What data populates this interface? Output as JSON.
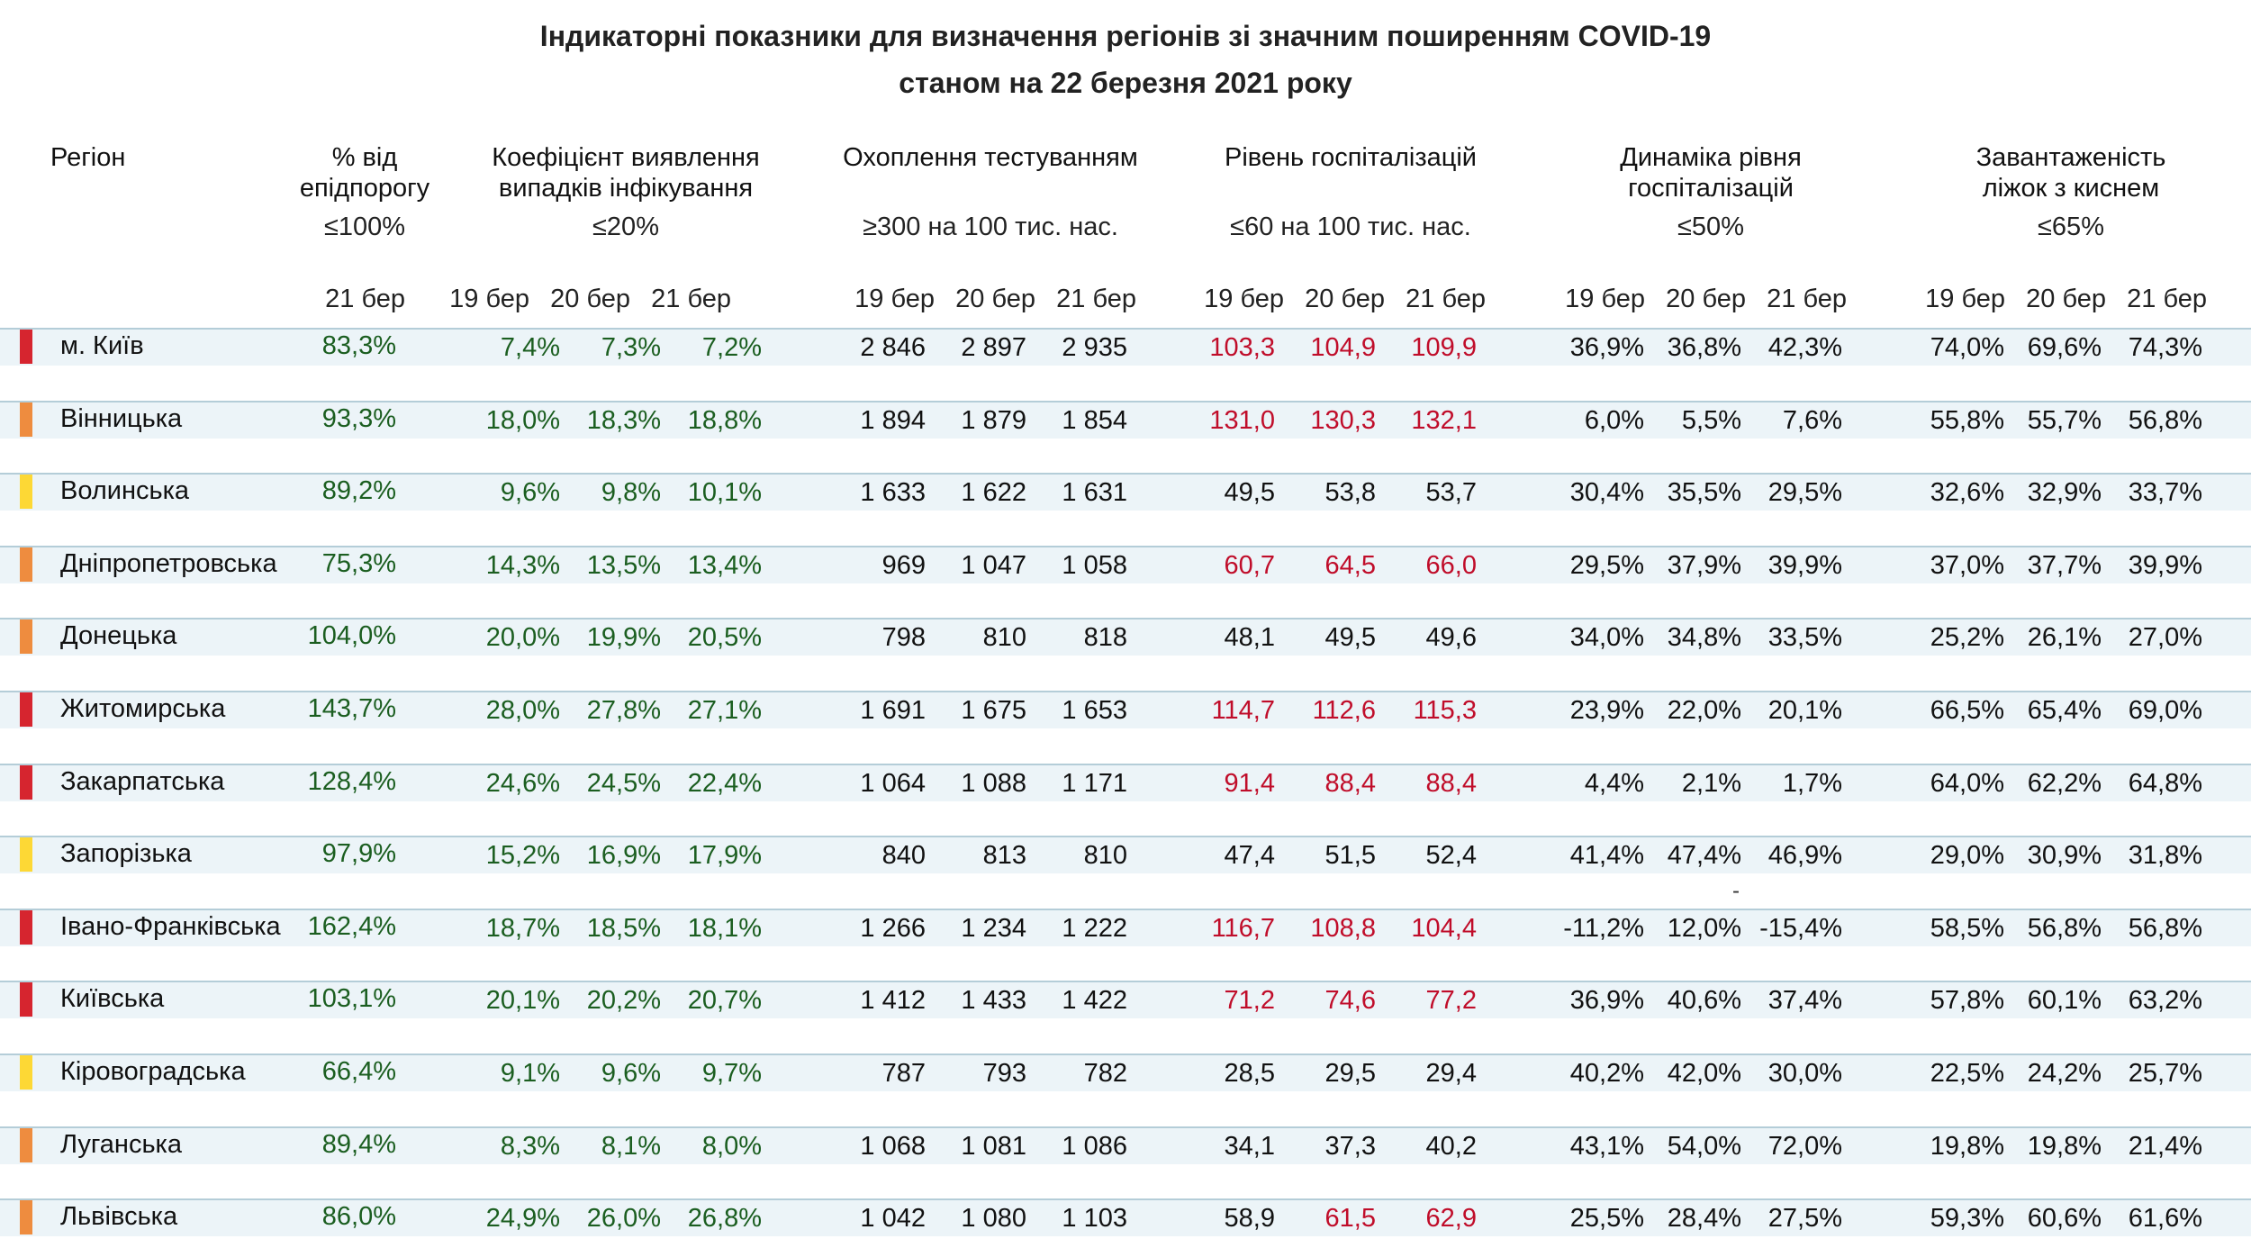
{
  "title": {
    "line1": "Індикаторні показники для визначення регіонів зі значним поширенням COVID-19",
    "line2": "станом на 22 березня 2021 року"
  },
  "columns": {
    "region": "Регіон",
    "epi_line1": "% від",
    "epi_line2": "епідпорогу",
    "epi_threshold": "≤100%",
    "coef_line1": "Коефіцієнт виявлення",
    "coef_line2": "випадків інфікування",
    "coef_threshold": "≤20%",
    "test_line1": "Охоплення тестуванням",
    "test_threshold": "≥300 на 100 тис. нас.",
    "hosp_line1": "Рівень госпіталізацій",
    "hosp_threshold": "≤60 на 100 тис. нас.",
    "dyn_line1": "Динаміка рівня",
    "dyn_line2": "госпіталізацій",
    "dyn_threshold": "≤50%",
    "oxy_line1": "Завантаженість",
    "oxy_line2": "ліжок з киснем",
    "oxy_threshold": "≤65%"
  },
  "days": {
    "d19": "19 бер",
    "d20": "20 бер",
    "d21": "21 бер"
  },
  "colors": {
    "red_level": "#d6252f",
    "orange_level": "#ee8c3f",
    "yellow_level": "#fdd835",
    "ok_value": "#1b5e20",
    "bad_value": "#c00d2a",
    "band": "#ecf4f8"
  },
  "rows": [
    {
      "region": "м. Київ",
      "level": "red",
      "epi": "83,3%",
      "coef": [
        "7,4%",
        "7,3%",
        "7,2%"
      ],
      "test": [
        "2 846",
        "2 897",
        "2 935"
      ],
      "hosp": [
        "103,3",
        "104,9",
        "109,9"
      ],
      "hosp_flag": [
        "red",
        "red",
        "red"
      ],
      "dyn": [
        "36,9%",
        "36,8%",
        "42,3%"
      ],
      "oxy": [
        "74,0%",
        "69,6%",
        "74,3%"
      ]
    },
    {
      "region": "Вінницька",
      "level": "orange",
      "epi": "93,3%",
      "coef": [
        "18,0%",
        "18,3%",
        "18,8%"
      ],
      "test": [
        "1 894",
        "1 879",
        "1 854"
      ],
      "hosp": [
        "131,0",
        "130,3",
        "132,1"
      ],
      "hosp_flag": [
        "red",
        "red",
        "red"
      ],
      "dyn": [
        "6,0%",
        "5,5%",
        "7,6%"
      ],
      "oxy": [
        "55,8%",
        "55,7%",
        "56,8%"
      ]
    },
    {
      "region": "Волинська",
      "level": "yellow",
      "epi": "89,2%",
      "coef": [
        "9,6%",
        "9,8%",
        "10,1%"
      ],
      "test": [
        "1 633",
        "1 622",
        "1 631"
      ],
      "hosp": [
        "49,5",
        "53,8",
        "53,7"
      ],
      "hosp_flag": [
        "black",
        "black",
        "black"
      ],
      "dyn": [
        "30,4%",
        "35,5%",
        "29,5%"
      ],
      "oxy": [
        "32,6%",
        "32,9%",
        "33,7%"
      ]
    },
    {
      "region": "Дніпропетровська",
      "level": "orange",
      "epi": "75,3%",
      "coef": [
        "14,3%",
        "13,5%",
        "13,4%"
      ],
      "test": [
        "969",
        "1 047",
        "1 058"
      ],
      "hosp": [
        "60,7",
        "64,5",
        "66,0"
      ],
      "hosp_flag": [
        "red",
        "red",
        "red"
      ],
      "dyn": [
        "29,5%",
        "37,9%",
        "39,9%"
      ],
      "oxy": [
        "37,0%",
        "37,7%",
        "39,9%"
      ]
    },
    {
      "region": "Донецька",
      "level": "orange",
      "epi": "104,0%",
      "coef": [
        "20,0%",
        "19,9%",
        "20,5%"
      ],
      "test": [
        "798",
        "810",
        "818"
      ],
      "hosp": [
        "48,1",
        "49,5",
        "49,6"
      ],
      "hosp_flag": [
        "black",
        "black",
        "black"
      ],
      "dyn": [
        "34,0%",
        "34,8%",
        "33,5%"
      ],
      "oxy": [
        "25,2%",
        "26,1%",
        "27,0%"
      ]
    },
    {
      "region": "Житомирська",
      "level": "red",
      "epi": "143,7%",
      "coef": [
        "28,0%",
        "27,8%",
        "27,1%"
      ],
      "test": [
        "1 691",
        "1 675",
        "1 653"
      ],
      "hosp": [
        "114,7",
        "112,6",
        "115,3"
      ],
      "hosp_flag": [
        "red",
        "red",
        "red"
      ],
      "dyn": [
        "23,9%",
        "22,0%",
        "20,1%"
      ],
      "oxy": [
        "66,5%",
        "65,4%",
        "69,0%"
      ]
    },
    {
      "region": "Закарпатська",
      "level": "red",
      "epi": "128,4%",
      "coef": [
        "24,6%",
        "24,5%",
        "22,4%"
      ],
      "test": [
        "1 064",
        "1 088",
        "1 171"
      ],
      "hosp": [
        "91,4",
        "88,4",
        "88,4"
      ],
      "hosp_flag": [
        "red",
        "red",
        "red"
      ],
      "dyn": [
        "4,4%",
        "2,1%",
        "1,7%"
      ],
      "oxy": [
        "64,0%",
        "62,2%",
        "64,8%"
      ]
    },
    {
      "region": "Запорізька",
      "level": "yellow",
      "epi": "97,9%",
      "coef": [
        "15,2%",
        "16,9%",
        "17,9%"
      ],
      "test": [
        "840",
        "813",
        "810"
      ],
      "hosp": [
        "47,4",
        "51,5",
        "52,4"
      ],
      "hosp_flag": [
        "black",
        "black",
        "black"
      ],
      "dyn": [
        "41,4%",
        "47,4%",
        "46,9%"
      ],
      "oxy": [
        "29,0%",
        "30,9%",
        "31,8%"
      ]
    },
    {
      "region": "Івано-Франківська",
      "level": "red",
      "epi": "162,4%",
      "coef": [
        "18,7%",
        "18,5%",
        "18,1%"
      ],
      "test": [
        "1 266",
        "1 234",
        "1 222"
      ],
      "hosp": [
        "116,7",
        "108,8",
        "104,4"
      ],
      "hosp_flag": [
        "red",
        "red",
        "red"
      ],
      "dyn": [
        "-11,2%",
        "12,0%",
        "-15,4%"
      ],
      "oxy": [
        "58,5%",
        "56,8%",
        "56,8%"
      ]
    },
    {
      "region": "Київська",
      "level": "red",
      "epi": "103,1%",
      "coef": [
        "20,1%",
        "20,2%",
        "20,7%"
      ],
      "test": [
        "1 412",
        "1 433",
        "1 422"
      ],
      "hosp": [
        "71,2",
        "74,6",
        "77,2"
      ],
      "hosp_flag": [
        "red",
        "red",
        "red"
      ],
      "dyn": [
        "36,9%",
        "40,6%",
        "37,4%"
      ],
      "oxy": [
        "57,8%",
        "60,1%",
        "63,2%"
      ]
    },
    {
      "region": "Кіровоградська",
      "level": "yellow",
      "epi": "66,4%",
      "coef": [
        "9,1%",
        "9,6%",
        "9,7%"
      ],
      "test": [
        "787",
        "793",
        "782"
      ],
      "hosp": [
        "28,5",
        "29,5",
        "29,4"
      ],
      "hosp_flag": [
        "black",
        "black",
        "black"
      ],
      "dyn": [
        "40,2%",
        "42,0%",
        "30,0%"
      ],
      "oxy": [
        "22,5%",
        "24,2%",
        "25,7%"
      ]
    },
    {
      "region": "Луганська",
      "level": "orange",
      "epi": "89,4%",
      "coef": [
        "8,3%",
        "8,1%",
        "8,0%"
      ],
      "test": [
        "1 068",
        "1 081",
        "1 086"
      ],
      "hosp": [
        "34,1",
        "37,3",
        "40,2"
      ],
      "hosp_flag": [
        "black",
        "black",
        "black"
      ],
      "dyn": [
        "43,1%",
        "54,0%",
        "72,0%"
      ],
      "oxy": [
        "19,8%",
        "19,8%",
        "21,4%"
      ]
    },
    {
      "region": "Львівська",
      "level": "orange",
      "epi": "86,0%",
      "coef": [
        "24,9%",
        "26,0%",
        "26,8%"
      ],
      "test": [
        "1 042",
        "1 080",
        "1 103"
      ],
      "hosp": [
        "58,9",
        "61,5",
        "62,9"
      ],
      "hosp_flag": [
        "black",
        "red",
        "red"
      ],
      "dyn": [
        "25,5%",
        "28,4%",
        "27,5%"
      ],
      "oxy": [
        "59,3%",
        "60,6%",
        "61,6%"
      ]
    }
  ],
  "stray_dash": "-"
}
